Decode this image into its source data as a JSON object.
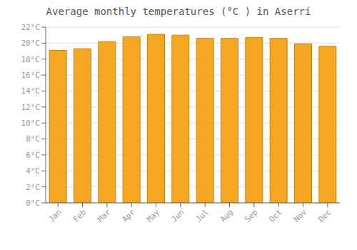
{
  "chart_data": {
    "type": "bar",
    "title": "Average monthly temperatures (°C ) in Aserrí",
    "categories": [
      "Jan",
      "Feb",
      "Mar",
      "Apr",
      "May",
      "Jun",
      "Jul",
      "Aug",
      "Sep",
      "Oct",
      "Nov",
      "Dec"
    ],
    "values": [
      19.1,
      19.3,
      20.2,
      20.8,
      21.1,
      21.0,
      20.6,
      20.6,
      20.7,
      20.6,
      19.9,
      19.6
    ],
    "color": "#F5A623",
    "ylim": [
      0,
      22
    ],
    "yticks": [
      {
        "value": 0,
        "label": "0°C"
      },
      {
        "value": 2,
        "label": "2°C"
      },
      {
        "value": 4,
        "label": "4°C"
      },
      {
        "value": 6,
        "label": "6°C"
      },
      {
        "value": 8,
        "label": "8°C"
      },
      {
        "value": 10,
        "label": "10°C"
      },
      {
        "value": 12,
        "label": "12°C"
      },
      {
        "value": 14,
        "label": "14°C"
      },
      {
        "value": 16,
        "label": "16°C"
      },
      {
        "value": 18,
        "label": "18°C"
      },
      {
        "value": 20,
        "label": "20°C"
      },
      {
        "value": 22,
        "label": "22°C"
      }
    ],
    "grid": true
  }
}
